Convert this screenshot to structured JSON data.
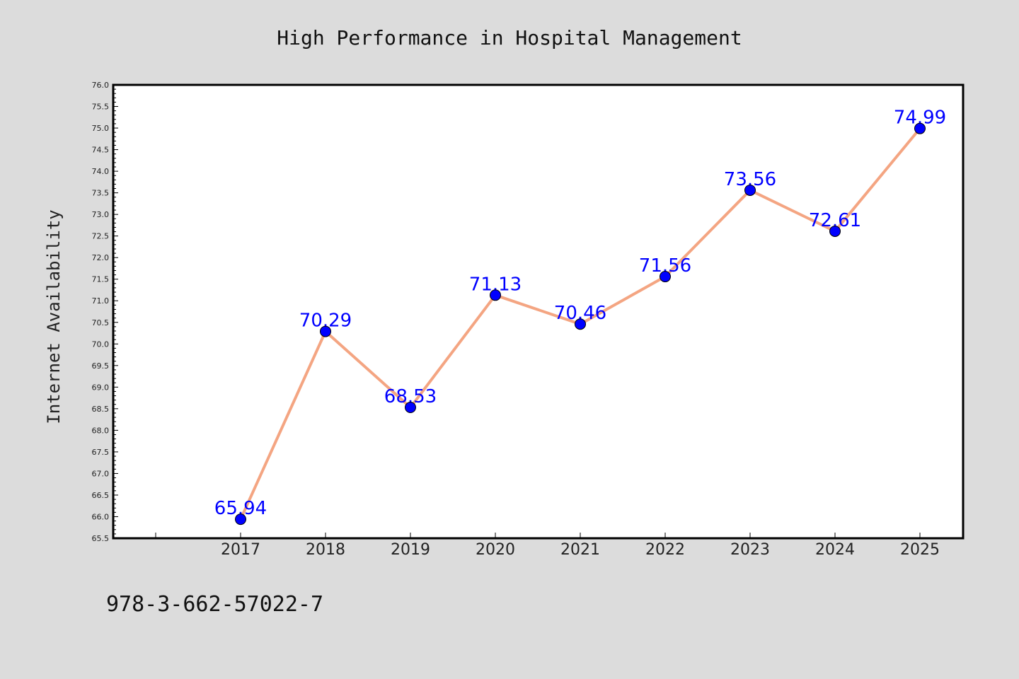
{
  "chart_data": {
    "type": "line",
    "title": "High Performance in Hospital Management",
    "xlabel": "",
    "ylabel": "Internet Availability",
    "x": [
      "2017",
      "2018",
      "2019",
      "2020",
      "2021",
      "2022",
      "2023",
      "2024",
      "2025"
    ],
    "series": [
      {
        "values": [
          65.94,
          70.29,
          68.53,
          71.13,
          70.46,
          71.56,
          73.56,
          72.61,
          74.99
        ],
        "data_labels": [
          "65.94",
          "70.29",
          "68.53",
          "71.13",
          "70.46",
          "71.56",
          "73.56",
          "72.61",
          "74.99"
        ]
      }
    ],
    "ylim": [
      65.5,
      76.0
    ],
    "yticks": [
      "65.5",
      "66.0",
      "66.5",
      "67.0",
      "67.5",
      "68.0",
      "68.5",
      "69.0",
      "69.5",
      "70.0",
      "70.5",
      "71.0",
      "71.5",
      "72.0",
      "72.5",
      "73.0",
      "73.5",
      "74.0",
      "74.5",
      "75.0",
      "75.5",
      "76.0"
    ],
    "grid": false,
    "legend": "none",
    "colors": {
      "line": "#f4a582",
      "marker": "#0000ff",
      "label": "#0000ff",
      "background": "#dcdcdc",
      "plot_background": "#ffffff"
    }
  },
  "footer": {
    "text": "978-3-662-57022-7"
  }
}
